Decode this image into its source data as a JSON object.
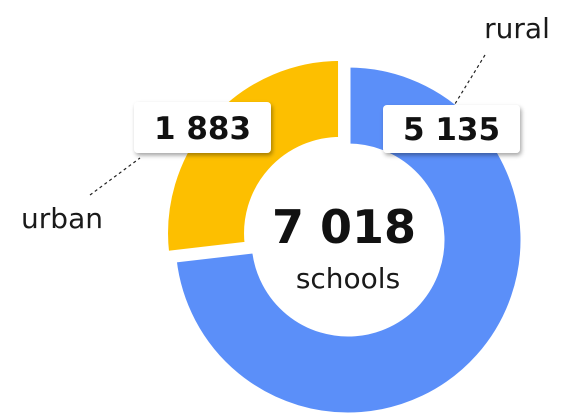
{
  "chart_data": {
    "type": "pie",
    "variant": "donut",
    "total": {
      "value": 7018,
      "value_label": "7 018",
      "caption": "schools"
    },
    "slices": [
      {
        "name": "rural",
        "value": 5135,
        "value_label": "5 135",
        "color": "#5b8ff9"
      },
      {
        "name": "urban",
        "value": 1883,
        "value_label": "1 883",
        "color": "#fdbf00"
      }
    ],
    "legend": "none"
  }
}
